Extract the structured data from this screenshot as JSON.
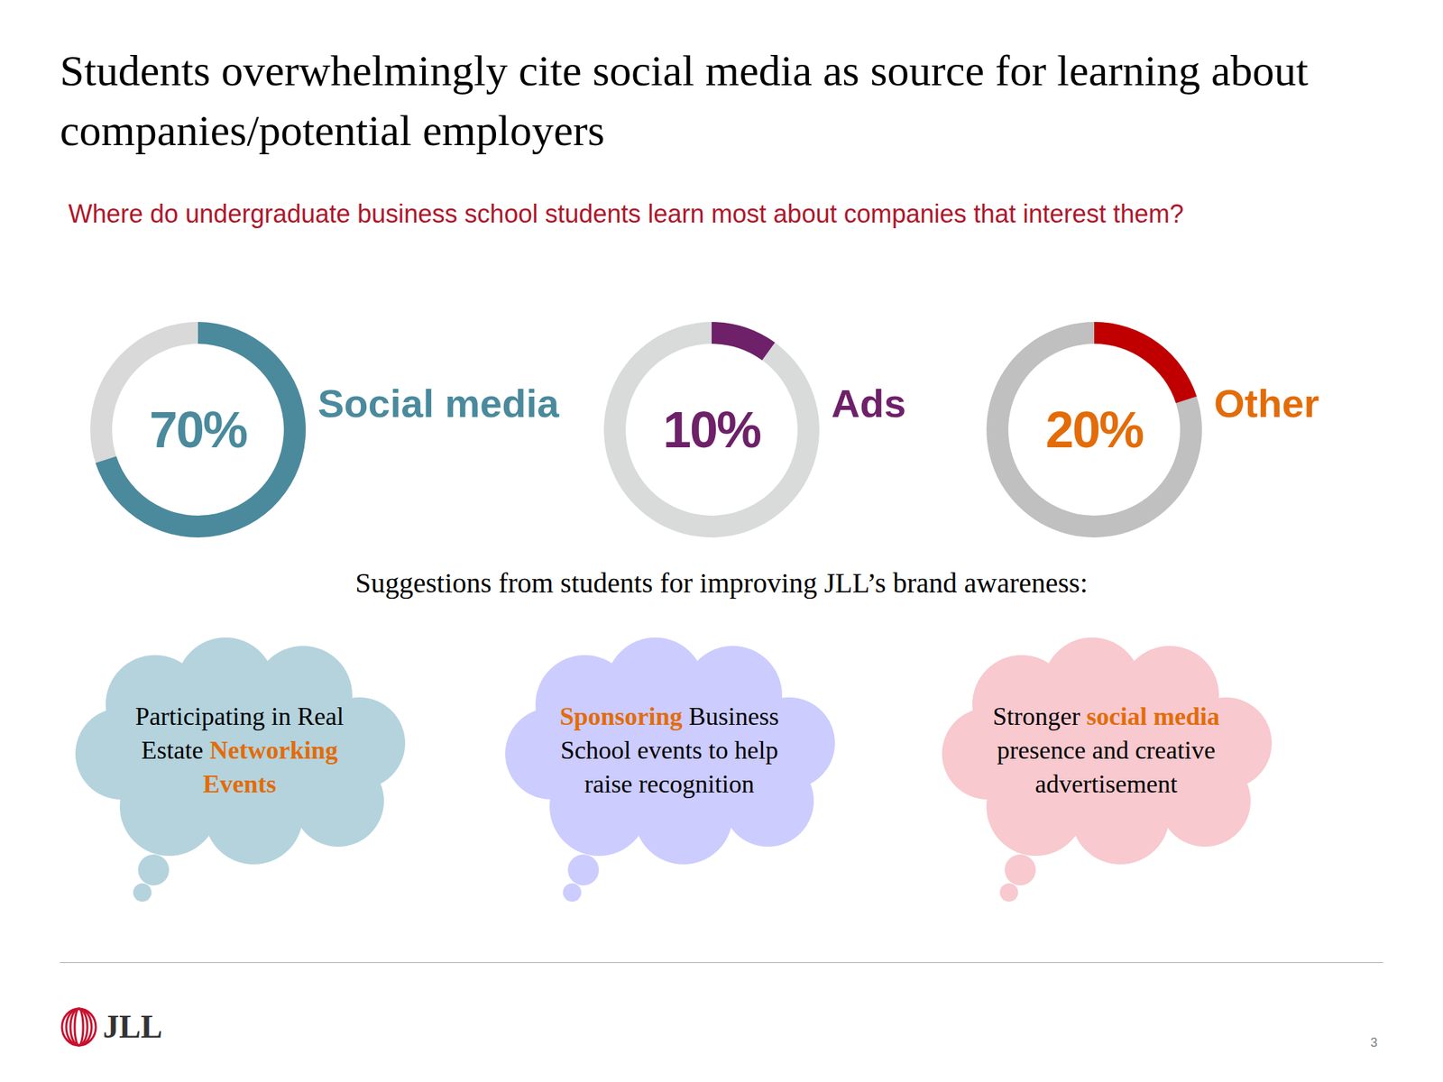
{
  "title": "Students overwhelmingly cite social media as source for learning about companies/potential employers",
  "subtitle": "Where do undergraduate business school students learn most about companies that interest them?",
  "chart_data": [
    {
      "type": "donut",
      "categories": [
        "Social media"
      ],
      "values": [
        70
      ],
      "value_labels": [
        "70%"
      ],
      "ylim": [
        0,
        100
      ],
      "color": "#4a8a9c"
    },
    {
      "type": "donut",
      "categories": [
        "Ads"
      ],
      "values": [
        10
      ],
      "value_labels": [
        "10%"
      ],
      "ylim": [
        0,
        100
      ],
      "color": "#6e2169"
    },
    {
      "type": "donut",
      "categories": [
        "Other"
      ],
      "values": [
        20
      ],
      "value_labels": [
        "20%"
      ],
      "ylim": [
        0,
        100
      ],
      "color": "#c00000"
    }
  ],
  "suggestions": {
    "heading": "Suggestions from students for improving JLL’s brand awareness:",
    "items": [
      {
        "parts": [
          {
            "text": "Participating in Real Estate "
          },
          {
            "text": "Networking Events",
            "highlight": true
          }
        ]
      },
      {
        "parts": [
          {
            "text": "Sponsoring",
            "highlight": true
          },
          {
            "text": " Business School events to help raise recognition"
          }
        ]
      },
      {
        "parts": [
          {
            "text": "Stronger "
          },
          {
            "text": "social media",
            "highlight": true
          },
          {
            "text": " presence and creative advertisement"
          }
        ]
      }
    ]
  },
  "footer": {
    "logo": "JLL",
    "page": 3
  }
}
